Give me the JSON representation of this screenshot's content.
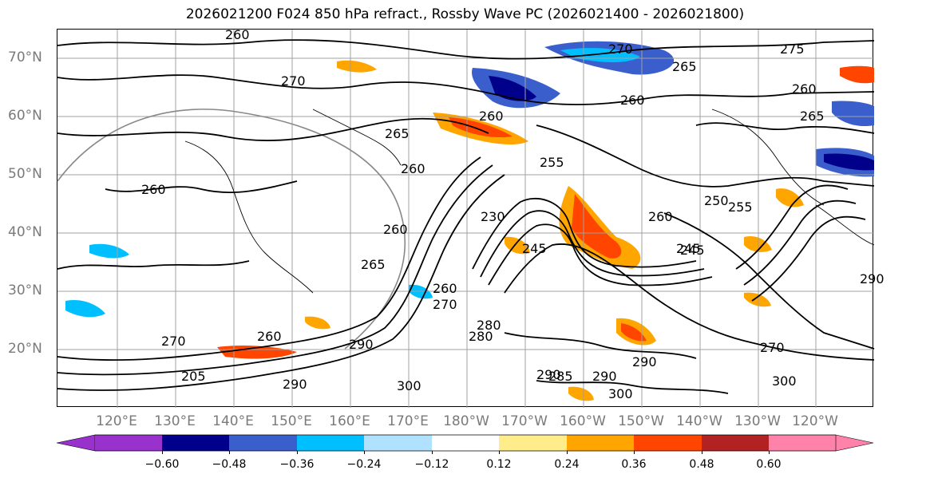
{
  "title": "2026021200 F024 850 hPa refract., Rossby Wave PC (2026021400 - 2026021800)",
  "lat_labels": [
    "70°N",
    "60°N",
    "50°N",
    "40°N",
    "30°N",
    "20°N"
  ],
  "lon_labels": [
    "120°E",
    "130°E",
    "140°E",
    "150°E",
    "160°E",
    "170°E",
    "180°W",
    "170°W",
    "160°W",
    "150°W",
    "140°W",
    "130°W",
    "120°W"
  ],
  "colorbar": {
    "ticks": [
      "−0.60",
      "−0.48",
      "−0.36",
      "−0.24",
      "−0.12",
      "0.12",
      "0.24",
      "0.36",
      "0.48",
      "0.60"
    ],
    "colors": [
      "#9932cc",
      "#00008b",
      "#3a5fcd",
      "#00bfff",
      "#b0e2ff",
      "#ffffff",
      "#ffec8b",
      "#ffa500",
      "#ff4500",
      "#b22222",
      "#ff82ab"
    ]
  },
  "contour_labels": [
    {
      "text": "260"
    },
    {
      "text": "270"
    },
    {
      "text": "275"
    },
    {
      "text": "265"
    },
    {
      "text": "260"
    },
    {
      "text": "260"
    },
    {
      "text": "265"
    },
    {
      "text": "270"
    },
    {
      "text": "260"
    },
    {
      "text": "265"
    },
    {
      "text": "255"
    },
    {
      "text": "260"
    },
    {
      "text": "260"
    },
    {
      "text": "245"
    },
    {
      "text": "230"
    },
    {
      "text": "245"
    },
    {
      "text": "280"
    },
    {
      "text": "290"
    },
    {
      "text": "290"
    },
    {
      "text": "300"
    },
    {
      "text": "290"
    },
    {
      "text": "260"
    },
    {
      "text": "270"
    },
    {
      "text": "300"
    },
    {
      "text": "280"
    },
    {
      "text": "285"
    },
    {
      "text": "290"
    },
    {
      "text": "265"
    },
    {
      "text": "260"
    },
    {
      "text": "270"
    },
    {
      "text": "250"
    },
    {
      "text": "255"
    },
    {
      "text": "245"
    },
    {
      "text": "260"
    },
    {
      "text": "260"
    },
    {
      "text": "290"
    },
    {
      "text": "300"
    },
    {
      "text": "205"
    },
    {
      "text": "270"
    },
    {
      "text": "290"
    }
  ]
}
